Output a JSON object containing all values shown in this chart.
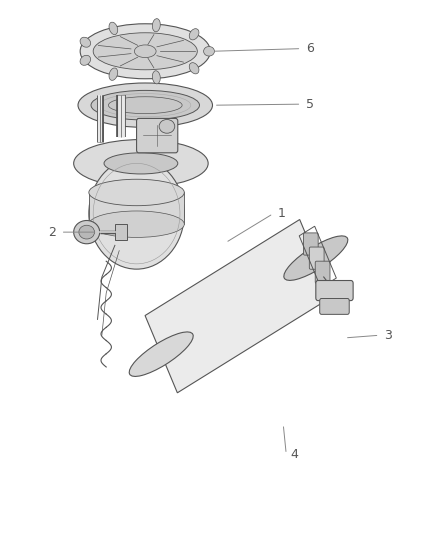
{
  "background_color": "#ffffff",
  "line_color": "#555555",
  "label_color": "#555555",
  "figsize": [
    4.38,
    5.33
  ],
  "dpi": 100
}
